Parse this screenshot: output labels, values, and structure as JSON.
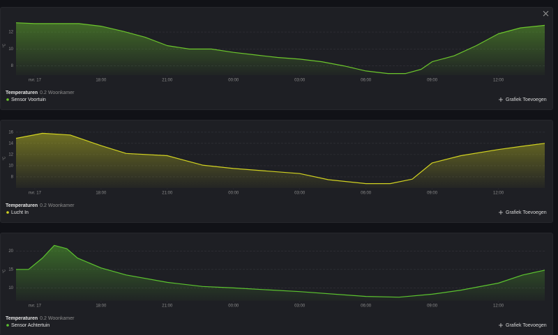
{
  "chart_data": [
    {
      "type": "area",
      "title": "Temperaturen",
      "subtitle": "0.2 Woonkamer",
      "ylabel": "°C",
      "button": "Grafiek Toevoegen",
      "x": [
        -0.85,
        0,
        1,
        2,
        3,
        4,
        5,
        6,
        7,
        8,
        9,
        10,
        11,
        12,
        13,
        14,
        15,
        16,
        16.8,
        17.5,
        18,
        19,
        20,
        21,
        22,
        23.1
      ],
      "series": [
        {
          "name": "Sensor Voortuin",
          "color": "#6cc62c",
          "values": [
            13.1,
            13.0,
            13.0,
            13.0,
            12.7,
            12.1,
            11.4,
            10.4,
            10.0,
            10.0,
            9.6,
            9.3,
            9.0,
            8.8,
            8.5,
            8.0,
            7.4,
            7.1,
            7.1,
            7.6,
            8.5,
            9.2,
            10.4,
            11.8,
            12.5,
            12.8
          ]
        }
      ],
      "xlim": [
        -0.85,
        23.1
      ],
      "xticks": [
        {
          "value": 0,
          "label": "nvr. 17"
        },
        {
          "value": 3,
          "label": "18:00"
        },
        {
          "value": 6,
          "label": "21:00"
        },
        {
          "value": 9,
          "label": "00:00"
        },
        {
          "value": 12,
          "label": "03:00"
        },
        {
          "value": 15,
          "label": "06:00"
        },
        {
          "value": 18,
          "label": "09:00"
        },
        {
          "value": 21,
          "label": "12:00"
        }
      ],
      "ylim": [
        6.9,
        13.9
      ],
      "yticks": [
        8,
        10,
        12
      ],
      "grid": true
    },
    {
      "type": "area",
      "title": "Temperaturen",
      "subtitle": "0.2 Woonkamer",
      "ylabel": "°C",
      "button": "Grafiek Toevoegen",
      "x": [
        -0.85,
        0.35,
        1.6,
        3,
        4.14,
        6,
        7.6,
        9,
        12,
        13.3,
        15,
        16.1,
        17.1,
        18,
        19.3,
        21,
        22.1,
        23.1
      ],
      "series": [
        {
          "name": "Lucht In",
          "color": "#d2d321",
          "values": [
            14.9,
            15.8,
            15.5,
            13.6,
            12.2,
            11.8,
            10.1,
            9.5,
            8.6,
            7.5,
            6.8,
            6.8,
            7.6,
            10.5,
            11.8,
            12.9,
            13.5,
            14.0
          ]
        }
      ],
      "xlim": [
        -0.85,
        23.1
      ],
      "xticks": [
        {
          "value": 0,
          "label": "nvr. 17"
        },
        {
          "value": 3,
          "label": "18:00"
        },
        {
          "value": 6,
          "label": "21:00"
        },
        {
          "value": 9,
          "label": "00:00"
        },
        {
          "value": 12,
          "label": "03:00"
        },
        {
          "value": 15,
          "label": "06:00"
        },
        {
          "value": 18,
          "label": "09:00"
        },
        {
          "value": 21,
          "label": "12:00"
        }
      ],
      "ylim": [
        6,
        16.6
      ],
      "yticks": [
        8,
        10,
        12,
        14,
        16
      ],
      "grid": true
    },
    {
      "type": "area",
      "title": "Temperaturen",
      "subtitle": "0.2 Woonkamer",
      "ylabel": "°C",
      "button": "Grafiek Toevoegen",
      "x": [
        -0.85,
        -0.28,
        0.35,
        0.88,
        1.45,
        1.93,
        3,
        4.14,
        6,
        7.6,
        9,
        12,
        15,
        16.5,
        18,
        19.3,
        21,
        22.1,
        23.1
      ],
      "series": [
        {
          "name": "Sensor Achtertuin",
          "color": "#5cc42f",
          "values": [
            15.0,
            15.0,
            18.1,
            21.5,
            20.6,
            18.1,
            15.4,
            13.5,
            11.5,
            10.4,
            10.0,
            9.0,
            7.7,
            7.5,
            8.3,
            9.4,
            11.3,
            13.5,
            14.8
          ]
        }
      ],
      "xlim": [
        -0.85,
        23.1
      ],
      "xticks": [
        {
          "value": 0,
          "label": "nvr. 17"
        },
        {
          "value": 3,
          "label": "18:00"
        },
        {
          "value": 6,
          "label": "21:00"
        },
        {
          "value": 9,
          "label": "00:00"
        },
        {
          "value": 12,
          "label": "03:00"
        },
        {
          "value": 15,
          "label": "06:00"
        },
        {
          "value": 18,
          "label": "09:00"
        },
        {
          "value": 21,
          "label": "12:00"
        }
      ],
      "ylim": [
        6.5,
        22.5
      ],
      "yticks": [
        10,
        15,
        20
      ],
      "grid": true
    }
  ]
}
